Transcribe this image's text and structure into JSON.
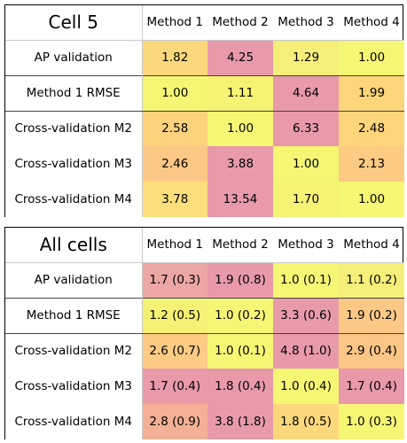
{
  "chart_data": [
    {
      "type": "table",
      "title": "Cell 5",
      "columns": [
        "Method 1",
        "Method 2",
        "Method 3",
        "Method 4"
      ],
      "rows": [
        {
          "label": "AP validation",
          "cells": [
            "1.82",
            "4.25",
            "1.29",
            "1.00"
          ],
          "colors": [
            "#fcd87c",
            "#e89aa8",
            "#f5ef7a",
            "#f5f674"
          ]
        },
        {
          "label": "Method 1 RMSE",
          "cells": [
            "1.00",
            "1.11",
            "4.64",
            "1.99"
          ],
          "colors": [
            "#f5f674",
            "#f6f274",
            "#e89aa8",
            "#fdd57a"
          ]
        },
        {
          "label": "Cross-validation M2",
          "cells": [
            "2.58",
            "1.00",
            "6.33",
            "2.48"
          ],
          "colors": [
            "#fdd27c",
            "#f5f674",
            "#e89aa8",
            "#fdd57a"
          ]
        },
        {
          "label": "Cross-validation M3",
          "cells": [
            "2.46",
            "3.88",
            "1.00",
            "2.13"
          ],
          "colors": [
            "#fcc886",
            "#e89aa8",
            "#f5f674",
            "#fdcb84"
          ]
        },
        {
          "label": "Cross-validation M4",
          "cells": [
            "3.78",
            "13.54",
            "1.70",
            "1.00"
          ],
          "colors": [
            "#fcde7a",
            "#e89aa8",
            "#f5f274",
            "#f5f674"
          ]
        }
      ]
    },
    {
      "type": "table",
      "title": "All cells",
      "columns": [
        "Method 1",
        "Method 2",
        "Method 3",
        "Method 4"
      ],
      "rows": [
        {
          "label": "AP validation",
          "cells": [
            "1.7 (0.3)",
            "1.9 (0.8)",
            "1.0 (0.1)",
            "1.1 (0.2)"
          ],
          "colors": [
            "#eca6a4",
            "#e89aa8",
            "#f5f674",
            "#f5ef7a"
          ]
        },
        {
          "label": "Method 1 RMSE",
          "cells": [
            "1.2 (0.5)",
            "1.0 (0.2)",
            "3.3 (0.6)",
            "1.9 (0.2)"
          ],
          "colors": [
            "#f5f174",
            "#f5f674",
            "#e89aa8",
            "#fcc886"
          ]
        },
        {
          "label": "Cross-validation M2",
          "cells": [
            "2.6 (0.7)",
            "1.0 (0.1)",
            "4.8 (1.0)",
            "2.9 (0.4)"
          ],
          "colors": [
            "#fdcb84",
            "#f5f674",
            "#e89aa8",
            "#fcc686"
          ]
        },
        {
          "label": "Cross-validation M3",
          "cells": [
            "1.7 (0.4)",
            "1.8 (0.4)",
            "1.0 (0.4)",
            "1.7 (0.4)"
          ],
          "colors": [
            "#e89aa8",
            "#e89aa8",
            "#f5f674",
            "#e89aa8"
          ]
        },
        {
          "label": "Cross-validation M4",
          "cells": [
            "2.8 (0.9)",
            "3.8 (1.8)",
            "1.8 (0.5)",
            "1.0 (0.3)"
          ],
          "colors": [
            "#f3b094",
            "#e89aa8",
            "#fcd87c",
            "#f5f674"
          ]
        }
      ]
    }
  ]
}
